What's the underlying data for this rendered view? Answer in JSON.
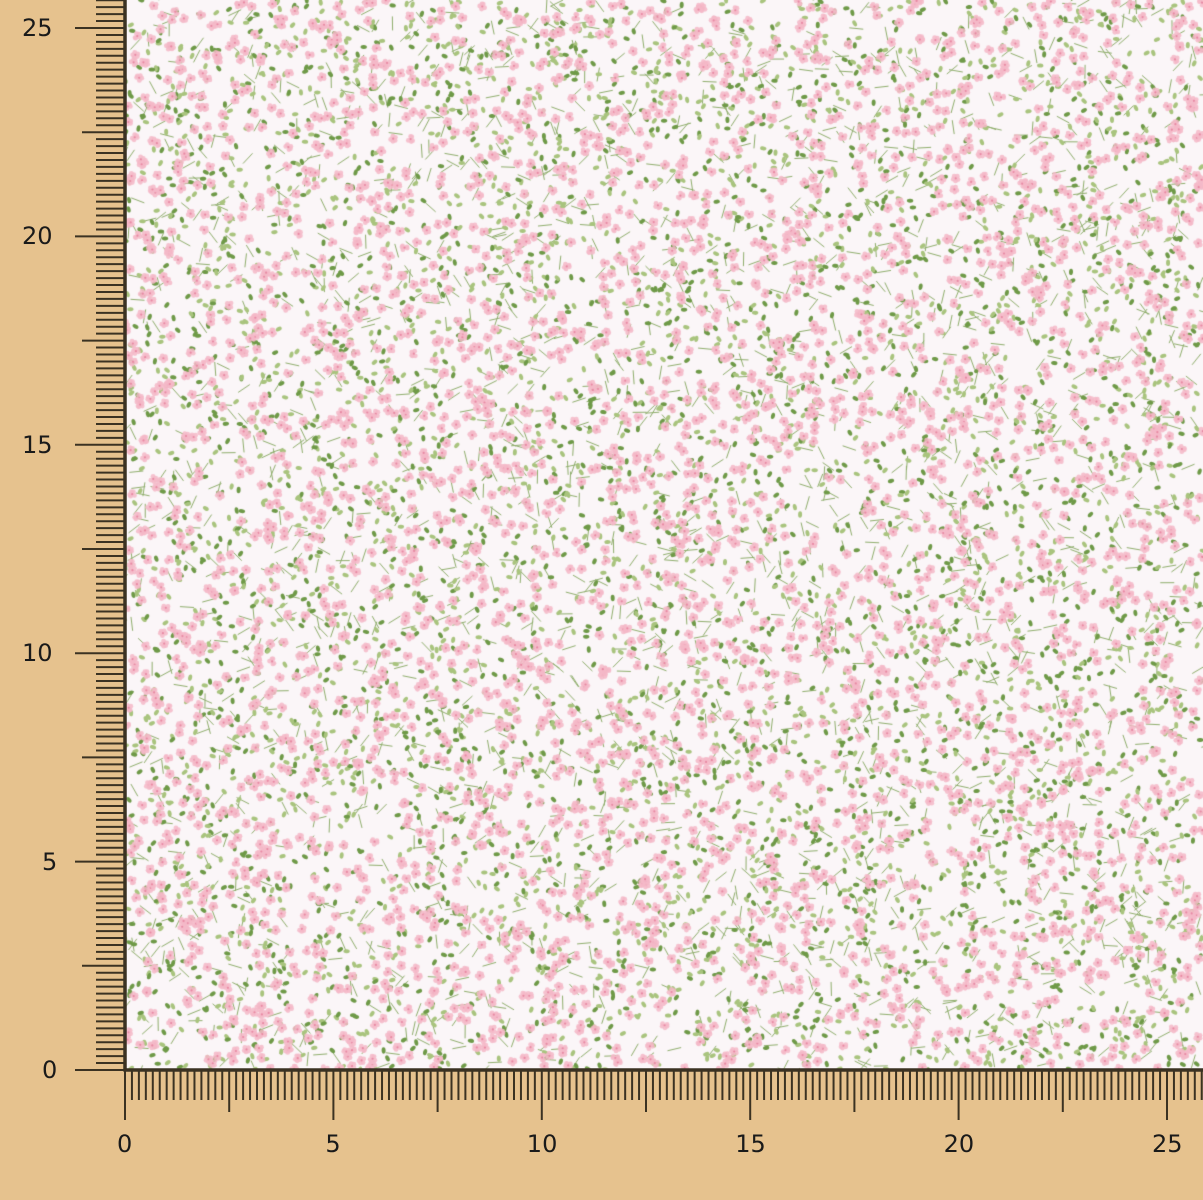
{
  "rulers": {
    "vertical_labels": [
      "0",
      "5",
      "10",
      "15",
      "20",
      "25"
    ],
    "horizontal_labels": [
      "0",
      "5",
      "10",
      "15",
      "20",
      "25"
    ],
    "minor_ticks_per_unit": 6
  },
  "fabric": {
    "pattern": "small pink flowers with green leaves on white",
    "colors": {
      "background": "#fbf6f8",
      "flower": "#f4b8c8",
      "flower_center": "#e88aa4",
      "leaf_light": "#a9c47e",
      "leaf_dark": "#6f9a48",
      "stem": "#8fae6c"
    }
  },
  "colors": {
    "ruler_background": "#e6c28e",
    "ruler_ink": "#3b3222"
  }
}
